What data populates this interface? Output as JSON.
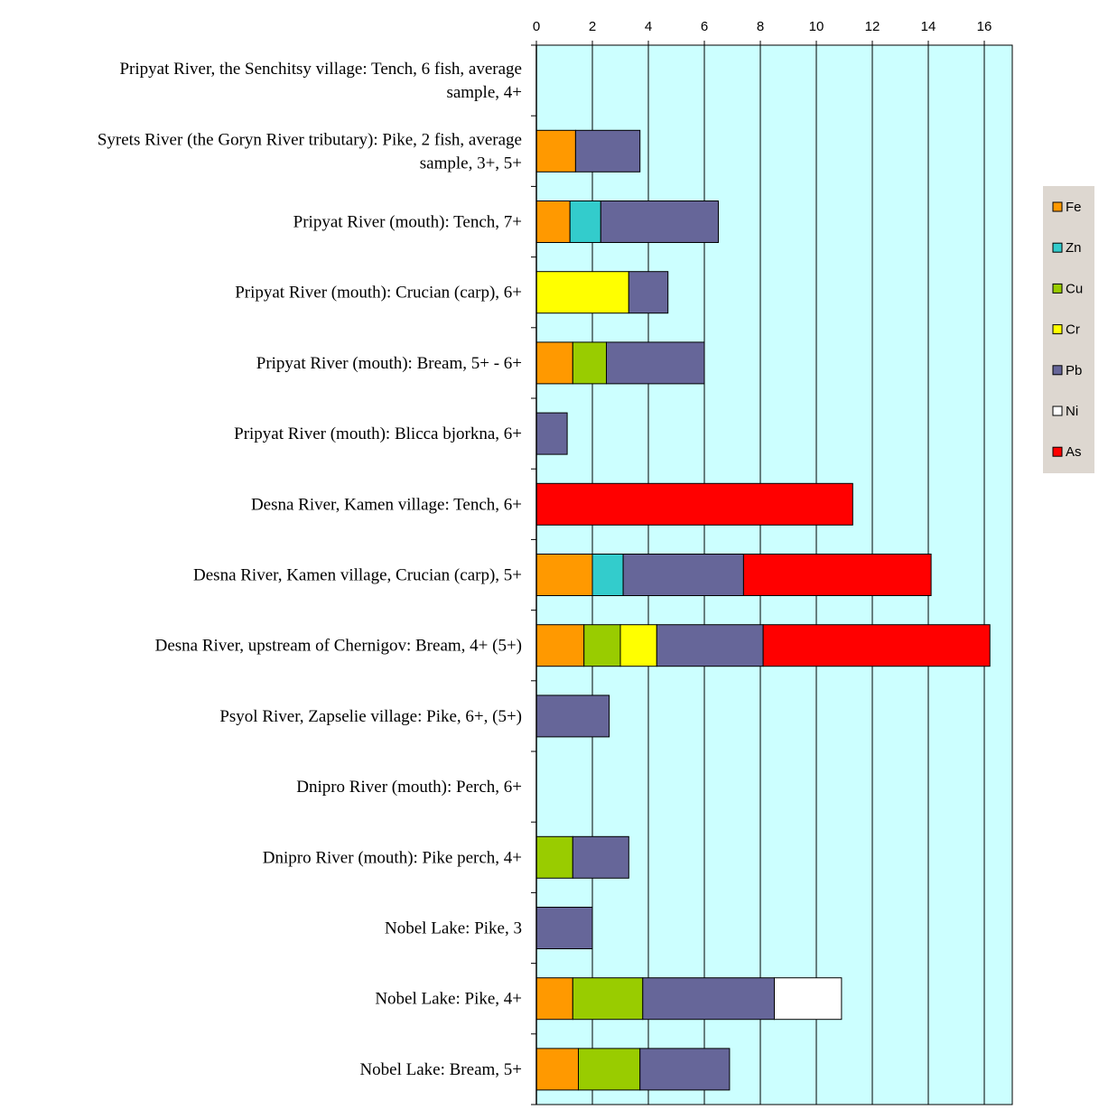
{
  "chart_data": {
    "type": "bar",
    "orientation": "horizontal",
    "stacked": true,
    "xlim": [
      0,
      17
    ],
    "ticks": [
      0,
      2,
      4,
      6,
      8,
      10,
      12,
      14,
      16
    ],
    "tick_labels": [
      "0",
      "2",
      "4",
      "6",
      "8",
      "10",
      "12",
      "14",
      "16"
    ],
    "xlabel": "",
    "ylabel": "",
    "grid": "vertical",
    "legend": "right",
    "plot_background": "#ccffff",
    "categories": [
      [
        "Pripyat River, the Senchitsy village: Tench, 6 fish, average",
        "sample, 4+"
      ],
      [
        "Syrets River (the Goryn River tributary): Pike, 2 fish, average",
        "sample, 3+, 5+"
      ],
      [
        "Pripyat River (mouth): Tench, 7+"
      ],
      [
        "Pripyat River (mouth): Crucian (carp), 6+"
      ],
      [
        "Pripyat River (mouth): Bream, 5+ - 6+"
      ],
      [
        "Pripyat River (mouth): Blicca bjorkna, 6+"
      ],
      [
        "Desna River, Kamen village: Tench, 6+"
      ],
      [
        "Desna River, Kamen village, Crucian (carp), 5+"
      ],
      [
        "Desna River, upstream  of  Chernigov: Bream, 4+ (5+)"
      ],
      [
        "Psyol River, Zapselie village: Pike, 6+, (5+)"
      ],
      [
        "Dnipro River (mouth): Perch, 6+"
      ],
      [
        "Dnipro River (mouth): Pike perch, 4+"
      ],
      [
        "Nobel Lake: Pike, 3"
      ],
      [
        "Nobel Lake: Pike, 4+"
      ],
      [
        "Nobel Lake: Bream, 5+"
      ]
    ],
    "series": [
      {
        "name": "Fe",
        "color": "#ff9900",
        "values": [
          0,
          1.4,
          1.2,
          0,
          1.3,
          0,
          0,
          2.0,
          1.7,
          0,
          0,
          0,
          0,
          1.3,
          1.5
        ]
      },
      {
        "name": "Zn",
        "color": "#33cccc",
        "values": [
          0,
          0,
          1.1,
          0,
          0,
          0,
          0,
          1.1,
          0,
          0,
          0,
          0,
          0,
          0,
          0
        ]
      },
      {
        "name": "Cu",
        "color": "#99cc00",
        "values": [
          0,
          0,
          0,
          0,
          1.2,
          0,
          0,
          0,
          1.3,
          0,
          0,
          1.3,
          0,
          2.5,
          2.2
        ]
      },
      {
        "name": "Cr",
        "color": "#ffff00",
        "values": [
          0,
          0,
          0,
          3.3,
          0,
          0,
          0,
          0,
          1.3,
          0,
          0,
          0,
          0,
          0,
          0
        ]
      },
      {
        "name": "Pb",
        "color": "#666699",
        "values": [
          0,
          2.3,
          4.2,
          1.4,
          3.5,
          1.1,
          0,
          4.3,
          3.8,
          2.6,
          0,
          2.0,
          2.0,
          4.7,
          3.2
        ]
      },
      {
        "name": "Ni",
        "color": "#ffffff",
        "values": [
          0,
          0,
          0,
          0,
          0,
          0,
          0,
          0,
          0,
          0,
          0,
          0,
          0,
          2.4,
          0
        ]
      },
      {
        "name": "As",
        "color": "#ff0000",
        "values": [
          0,
          0,
          0,
          0,
          0,
          0,
          11.3,
          6.7,
          8.1,
          0,
          0,
          0,
          0,
          0,
          0
        ]
      }
    ]
  }
}
